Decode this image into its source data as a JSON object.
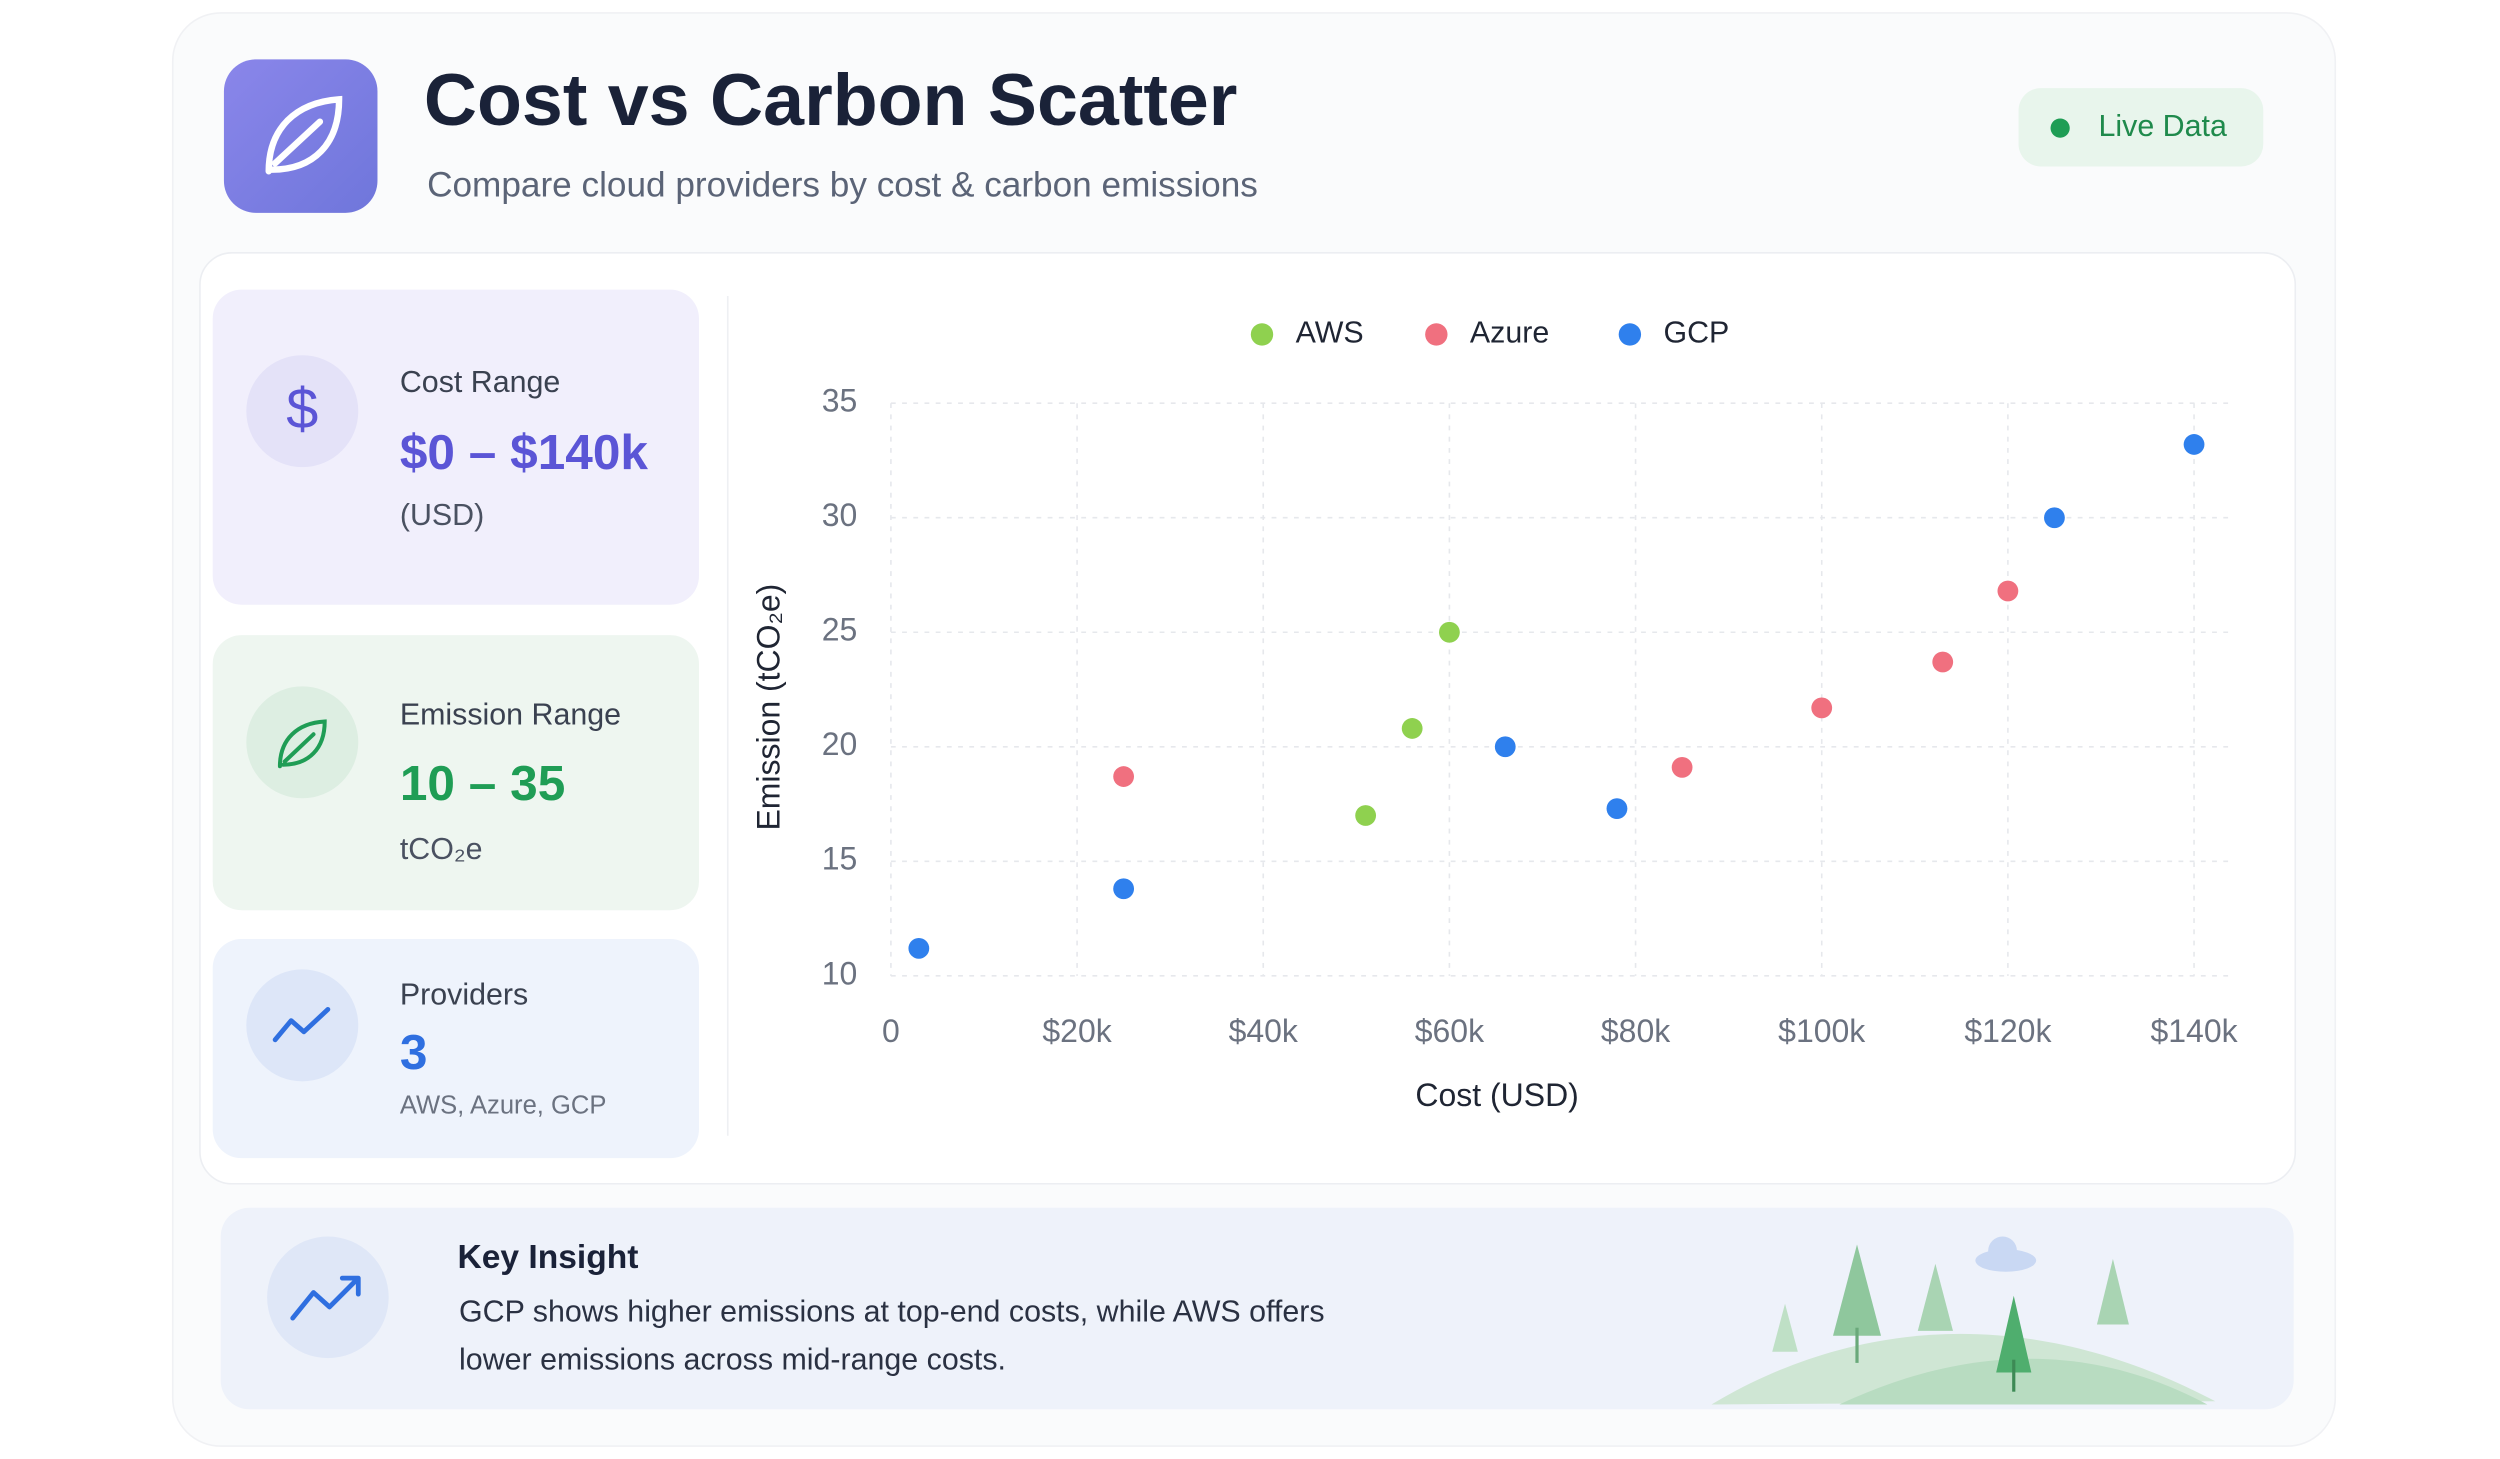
{
  "header": {
    "title": "Cost vs Carbon Scatter",
    "subtitle": "Compare cloud providers by cost & carbon emissions",
    "status": "Live Data"
  },
  "stats": [
    {
      "icon": "$",
      "label": "Cost Range",
      "value": "$0 – $140k",
      "unit": "(USD)"
    },
    {
      "label": "Emission Range",
      "value": "10 – 35",
      "unit": "tCO₂e"
    },
    {
      "label": "Providers",
      "value": "3",
      "unit": "AWS, Azure, GCP"
    }
  ],
  "chart_data": {
    "type": "scatter",
    "x_label": "Cost (USD)",
    "y_label": "Emission (tCO₂e)",
    "xlim": [
      0,
      144000
    ],
    "ylim": [
      10,
      35
    ],
    "xticks": [
      0,
      {
        "value": 20000,
        "label": "$20k"
      },
      {
        "value": 40000,
        "label": "$40k"
      },
      {
        "value": 60000,
        "label": "$60k"
      },
      {
        "value": 80000,
        "label": "$80k"
      },
      {
        "value": 100000,
        "label": "$100k"
      },
      {
        "value": 120000,
        "label": "$120k"
      },
      {
        "value": 140000,
        "label": "$140k"
      }
    ],
    "yticks": [
      10,
      15,
      20,
      25,
      30,
      35
    ],
    "grid": true,
    "legend": "top",
    "series": [
      {
        "name": "AWS",
        "color": "#8fd14f",
        "x": [
          51000,
          56000,
          60000
        ],
        "values": [
          17,
          20.8,
          25
        ]
      },
      {
        "name": "Azure",
        "color": "#f0707f",
        "x": [
          25000,
          85000,
          100000,
          113000,
          120000
        ],
        "values": [
          18.7,
          19.1,
          21.7,
          23.7,
          26.8
        ]
      },
      {
        "name": "GCP",
        "color": "#2f80ed",
        "x": [
          3000,
          25000,
          66000,
          78000,
          125000,
          140000
        ],
        "values": [
          11.2,
          13.8,
          20,
          17.3,
          30,
          33.2
        ]
      }
    ]
  },
  "insight": {
    "title": "Key Insight",
    "lines": [
      "GCP shows higher emissions at top-end costs, while AWS offers",
      "lower emissions across mid-range costs."
    ]
  }
}
